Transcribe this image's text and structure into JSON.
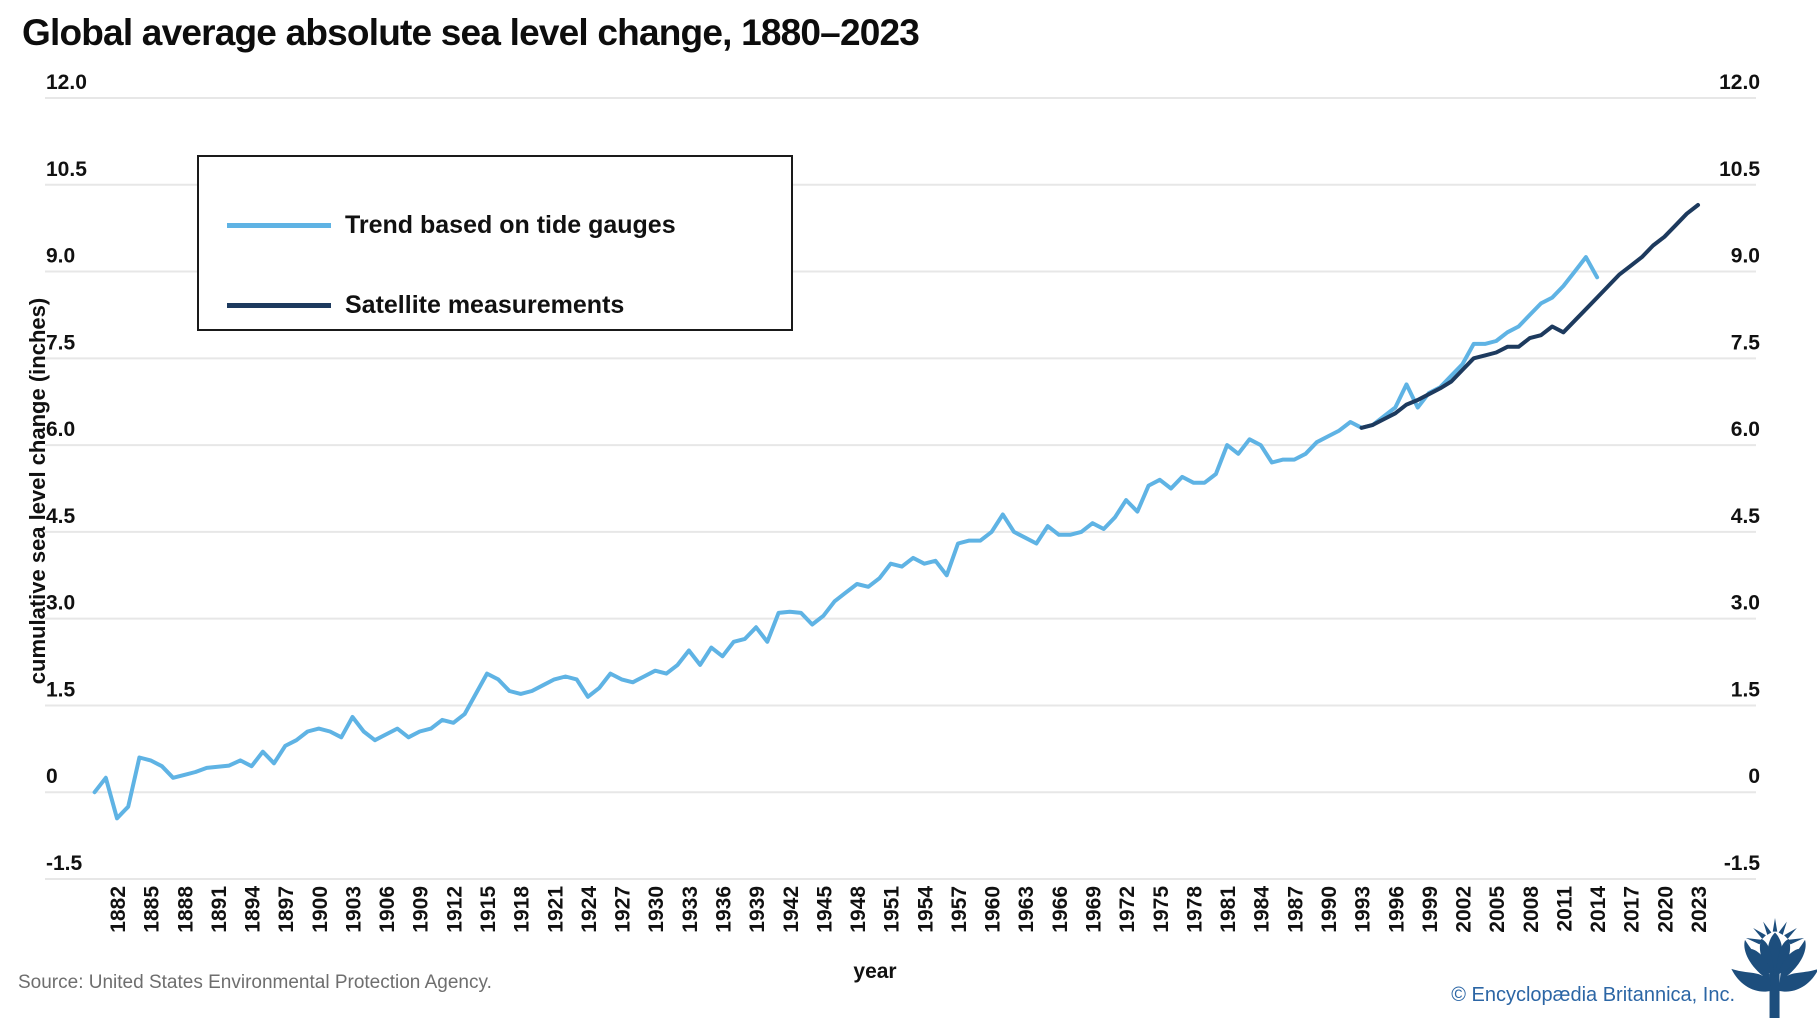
{
  "title": "Global average absolute sea level change, 1880–2023",
  "legend": {
    "items": [
      {
        "label": "Trend based on tide gauges",
        "color": "#5fb3e4"
      },
      {
        "label": "Satellite measurements",
        "color": "#1d3a5e"
      }
    ]
  },
  "axes": {
    "y_label": "cumulative sea level change (inches)",
    "x_label": "year"
  },
  "footer": {
    "source": "Source: United States Environmental Protection Agency.",
    "credit": "© Encyclopædia Britannica, Inc.",
    "logo": "britannica-thistle"
  },
  "colors": {
    "tide_gauges_line": "#5fb3e4",
    "satellite_line": "#1d3a5e",
    "gridline": "#e7e7e7",
    "axis_text": "#111111",
    "source_text": "#6e6e6e",
    "credit_text": "#2c66a5",
    "logo_blue": "#1d4e7d"
  },
  "chart_data": {
    "type": "line",
    "title": "Global average absolute sea level change, 1880–2023",
    "xlabel": "year",
    "ylabel": "cumulative sea level change (inches)",
    "xlim": [
      1880,
      2023
    ],
    "ylim": [
      -1.5,
      12.0
    ],
    "grid": "horizontal",
    "legend_position": "top-left boxed",
    "y_ticks": [
      {
        "value": 12.0,
        "label": "12.0"
      },
      {
        "value": 10.5,
        "label": "10.5"
      },
      {
        "value": 9.0,
        "label": "9.0"
      },
      {
        "value": 7.5,
        "label": "7.5"
      },
      {
        "value": 6.0,
        "label": "6.0"
      },
      {
        "value": 4.5,
        "label": "4.5"
      },
      {
        "value": 3.0,
        "label": "3.0"
      },
      {
        "value": 1.5,
        "label": "1.5"
      },
      {
        "value": 0,
        "label": "0"
      },
      {
        "value": -1.5,
        "label": "-1.5"
      }
    ],
    "x_ticks": [
      1882,
      1885,
      1888,
      1891,
      1894,
      1897,
      1900,
      1903,
      1906,
      1909,
      1912,
      1915,
      1918,
      1921,
      1924,
      1927,
      1930,
      1933,
      1936,
      1939,
      1942,
      1945,
      1948,
      1951,
      1954,
      1957,
      1960,
      1963,
      1966,
      1969,
      1972,
      1975,
      1978,
      1981,
      1984,
      1987,
      1990,
      1993,
      1996,
      1999,
      2002,
      2005,
      2008,
      2011,
      2014,
      2017,
      2020,
      2023
    ],
    "series": [
      {
        "name": "Trend based on tide gauges",
        "color": "#5fb3e4",
        "stroke_width": 4,
        "start_year": 1880,
        "values": [
          0,
          0.25,
          -0.45,
          -0.25,
          0.6,
          0.55,
          0.45,
          0.25,
          0.3,
          0.35,
          0.42,
          0.44,
          0.46,
          0.55,
          0.45,
          0.7,
          0.5,
          0.8,
          0.9,
          1.05,
          1.1,
          1.05,
          0.95,
          1.3,
          1.05,
          0.9,
          1.0,
          1.1,
          0.95,
          1.05,
          1.1,
          1.25,
          1.2,
          1.35,
          1.7,
          2.05,
          1.95,
          1.75,
          1.7,
          1.75,
          1.85,
          1.95,
          2.0,
          1.95,
          1.65,
          1.8,
          2.05,
          1.95,
          1.9,
          2.0,
          2.1,
          2.05,
          2.2,
          2.45,
          2.2,
          2.5,
          2.35,
          2.6,
          2.65,
          2.85,
          2.6,
          3.1,
          3.12,
          3.1,
          2.9,
          3.05,
          3.3,
          3.45,
          3.6,
          3.55,
          3.7,
          3.95,
          3.9,
          4.05,
          3.95,
          4.0,
          3.75,
          4.3,
          4.35,
          4.35,
          4.5,
          4.8,
          4.5,
          4.4,
          4.3,
          4.6,
          4.45,
          4.45,
          4.5,
          4.65,
          4.55,
          4.75,
          5.05,
          4.85,
          5.3,
          5.4,
          5.25,
          5.45,
          5.35,
          5.35,
          5.5,
          6.0,
          5.85,
          6.1,
          6.0,
          5.7,
          5.75,
          5.75,
          5.85,
          6.05,
          6.15,
          6.25,
          6.4,
          6.3,
          6.35,
          6.5,
          6.65,
          7.05,
          6.65,
          6.9,
          7.0,
          7.2,
          7.4,
          7.75,
          7.75,
          7.8,
          7.95,
          8.05,
          8.25,
          8.45,
          8.55,
          8.75,
          9.0,
          9.25,
          8.9
        ]
      },
      {
        "name": "Satellite measurements",
        "color": "#1d3a5e",
        "stroke_width": 4,
        "start_year": 1993,
        "values": [
          6.3,
          6.35,
          6.45,
          6.55,
          6.7,
          6.78,
          6.88,
          6.98,
          7.1,
          7.3,
          7.5,
          7.55,
          7.6,
          7.7,
          7.7,
          7.85,
          7.9,
          8.05,
          7.95,
          8.15,
          8.35,
          8.55,
          8.75,
          8.95,
          9.1,
          9.25,
          9.45,
          9.6,
          9.8,
          10.0,
          10.15
        ]
      }
    ]
  }
}
